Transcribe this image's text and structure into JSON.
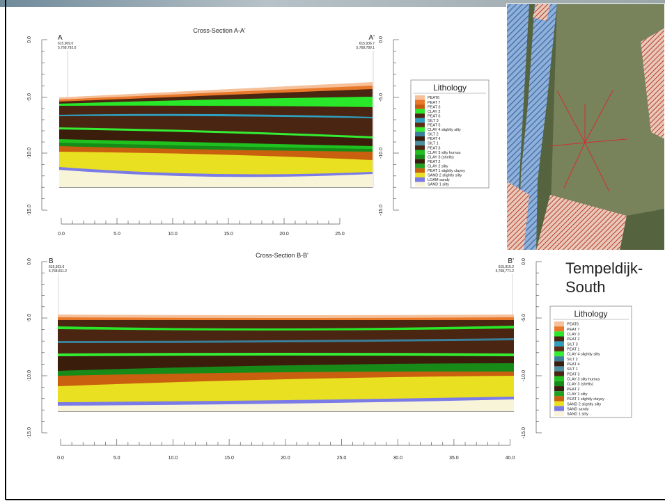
{
  "sections": [
    {
      "title": "Cross-Section A-A'",
      "left_axis_labels": [
        "0.0",
        "-5.0",
        "-10.0",
        "-15.0"
      ],
      "right_axis_labels": [
        "0.0",
        "-5.0",
        "-10.0",
        "-15.0"
      ],
      "x_axis_labels": [
        "0.0",
        "5.0",
        "10.0",
        "15.0",
        "20.0",
        "25.0"
      ],
      "start": {
        "label": "A",
        "easting": "615,909.0",
        "northing": "5,768,792.0"
      },
      "end": {
        "label": "A'",
        "easting": "615,936.7",
        "northing": "5,768,789.1"
      },
      "legend": {
        "title": "Lithology",
        "entries": [
          {
            "label": "PEAT6",
            "color": "#f5c09a"
          },
          {
            "label": "PEAT 7",
            "color": "#e8782a"
          },
          {
            "label": "PEAT 3",
            "color": "#c85a10"
          },
          {
            "label": "CLAY 2",
            "color": "#29e829"
          },
          {
            "label": "PEAT 6",
            "color": "#4a2511"
          },
          {
            "label": "SILT 3",
            "color": "#2e9fbf"
          },
          {
            "label": "PEAT 5",
            "color": "#5a2d14"
          },
          {
            "label": "CLAY 4 slightly silty",
            "color": "#33ee33"
          },
          {
            "label": "SILT 2",
            "color": "#3a7f9a"
          },
          {
            "label": "PEAT 4",
            "color": "#3b1d0c"
          },
          {
            "label": "SILT 1",
            "color": "#4b8fa0"
          },
          {
            "label": "PEAT 3",
            "color": "#4a2511"
          },
          {
            "label": "CLAY 3 silty humus",
            "color": "#1fc11f"
          },
          {
            "label": "CLAY 3 (shells)",
            "color": "#178a17"
          },
          {
            "label": "PEAT 2",
            "color": "#3a1d0c"
          },
          {
            "label": "CLAY 2 silty",
            "color": "#22a022"
          },
          {
            "label": "PEAT 1 slightly clayey",
            "color": "#c8600f"
          },
          {
            "label": "SAND 2 slightly silty",
            "color": "#e8e020"
          },
          {
            "label": "LOAM sandy",
            "color": "#7b7be8"
          },
          {
            "label": "SAND 1 silty",
            "color": "#f8f4d8"
          }
        ]
      }
    },
    {
      "title": "Cross-Section B-B'",
      "left_axis_labels": [
        "0.0",
        "-5.0",
        "-10.0",
        "-15.0"
      ],
      "right_axis_labels": [
        "0.0",
        "-5.0",
        "-10.0",
        "-15.0"
      ],
      "x_axis_labels": [
        "0.0",
        "5.0",
        "10.0",
        "15.0",
        "20.0",
        "25.0",
        "30.0",
        "35.0",
        "40.0"
      ],
      "start": {
        "label": "B",
        "easting": "615,923.6",
        "northing": "5,768,811.2"
      },
      "end": {
        "label": "B'",
        "easting": "615,916.2",
        "northing": "5,768,771.2"
      },
      "legend": {
        "title": "Lithology",
        "entries": [
          {
            "label": "PEAT6",
            "color": "#f5c09a"
          },
          {
            "label": "PEAT 7",
            "color": "#e8782a"
          },
          {
            "label": "CLAY 3",
            "color": "#29e829"
          },
          {
            "label": "PEAT 2",
            "color": "#4a2511"
          },
          {
            "label": "SILT 3",
            "color": "#2e9fbf"
          },
          {
            "label": "PEAT 1",
            "color": "#5a2d14"
          },
          {
            "label": "CLAY 4 slightly silty",
            "color": "#33ee33"
          },
          {
            "label": "SILT 2",
            "color": "#3a7f9a"
          },
          {
            "label": "PEAT 4",
            "color": "#3b1d0c"
          },
          {
            "label": "SILT 1",
            "color": "#4b8fa0"
          },
          {
            "label": "PEAT 3",
            "color": "#4a2511"
          },
          {
            "label": "CLAY 3 silty humus",
            "color": "#1fc11f"
          },
          {
            "label": "CLAY 3 (shells)",
            "color": "#178a17"
          },
          {
            "label": "PEAT 2",
            "color": "#3a1d0c"
          },
          {
            "label": "CLAY 2 silty",
            "color": "#22a022"
          },
          {
            "label": "PEAT 1 slightly clayey",
            "color": "#c8600f"
          },
          {
            "label": "SAND 2 slightly silty",
            "color": "#e8e020"
          },
          {
            "label": "SAND sandy",
            "color": "#7b7be8"
          },
          {
            "label": "SAND 1 silty",
            "color": "#f8f4d8"
          }
        ]
      }
    }
  ],
  "site_label": [
    "Tempeldijk-",
    "South"
  ]
}
